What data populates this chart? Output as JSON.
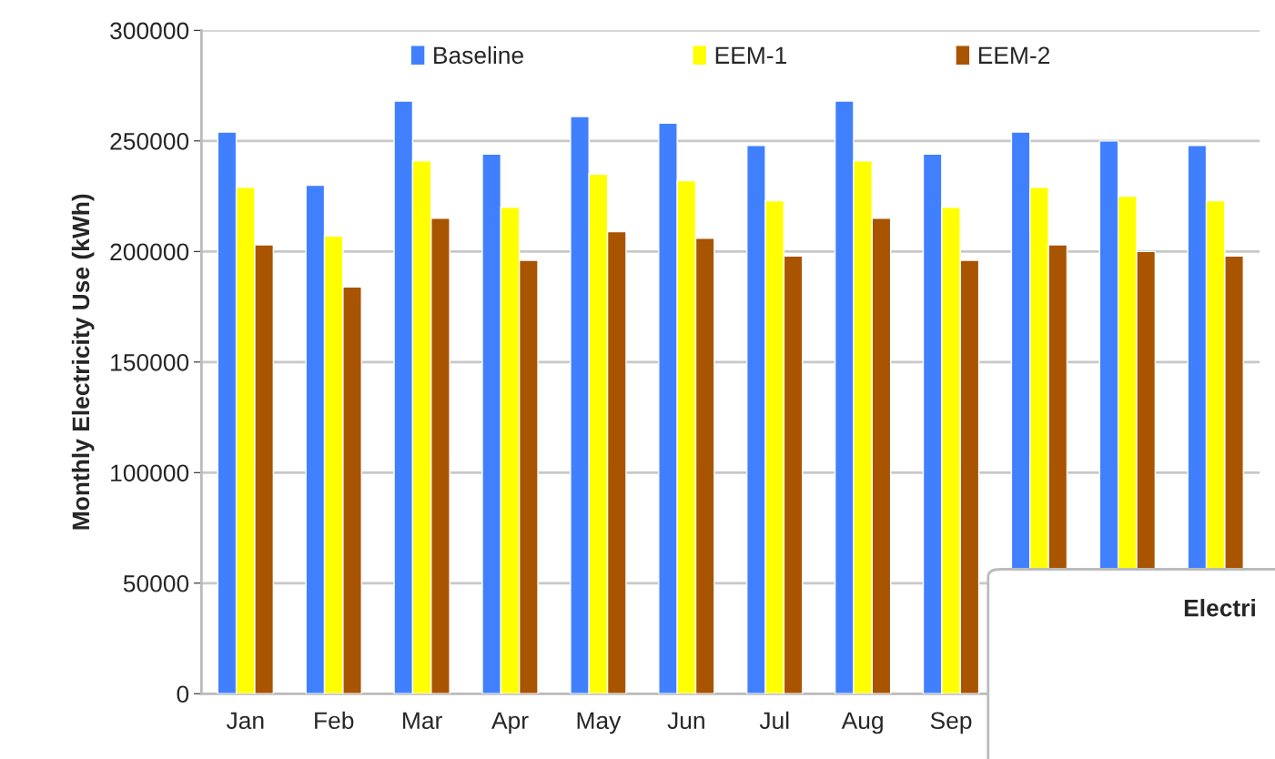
{
  "chart_data": {
    "type": "bar",
    "ylabel": "Monthly Electricity Use (kWh)",
    "categories": [
      "Jan",
      "Feb",
      "Mar",
      "Apr",
      "May",
      "Jun",
      "Jul",
      "Aug",
      "Sep",
      null,
      null,
      null
    ],
    "series": [
      {
        "name": "Baseline",
        "color": "#4080ff",
        "values": [
          254000,
          230000,
          268000,
          244000,
          261000,
          258000,
          248000,
          268000,
          244000,
          254000,
          250000,
          248000
        ]
      },
      {
        "name": "EEM-1",
        "color": "#ffff00",
        "values": [
          229000,
          207000,
          241000,
          220000,
          235000,
          232000,
          223000,
          241000,
          220000,
          229000,
          225000,
          223000
        ]
      },
      {
        "name": "EEM-2",
        "color": "#a85400",
        "values": [
          203000,
          184000,
          215000,
          196000,
          209000,
          206000,
          198000,
          215000,
          196000,
          203000,
          200000,
          198000
        ]
      }
    ],
    "ylim": [
      0,
      300000
    ],
    "yticks": [
      0,
      50000,
      100000,
      150000,
      200000,
      250000,
      300000
    ],
    "grid": "y",
    "legend": "top",
    "annotations": [
      "Electri"
    ]
  }
}
